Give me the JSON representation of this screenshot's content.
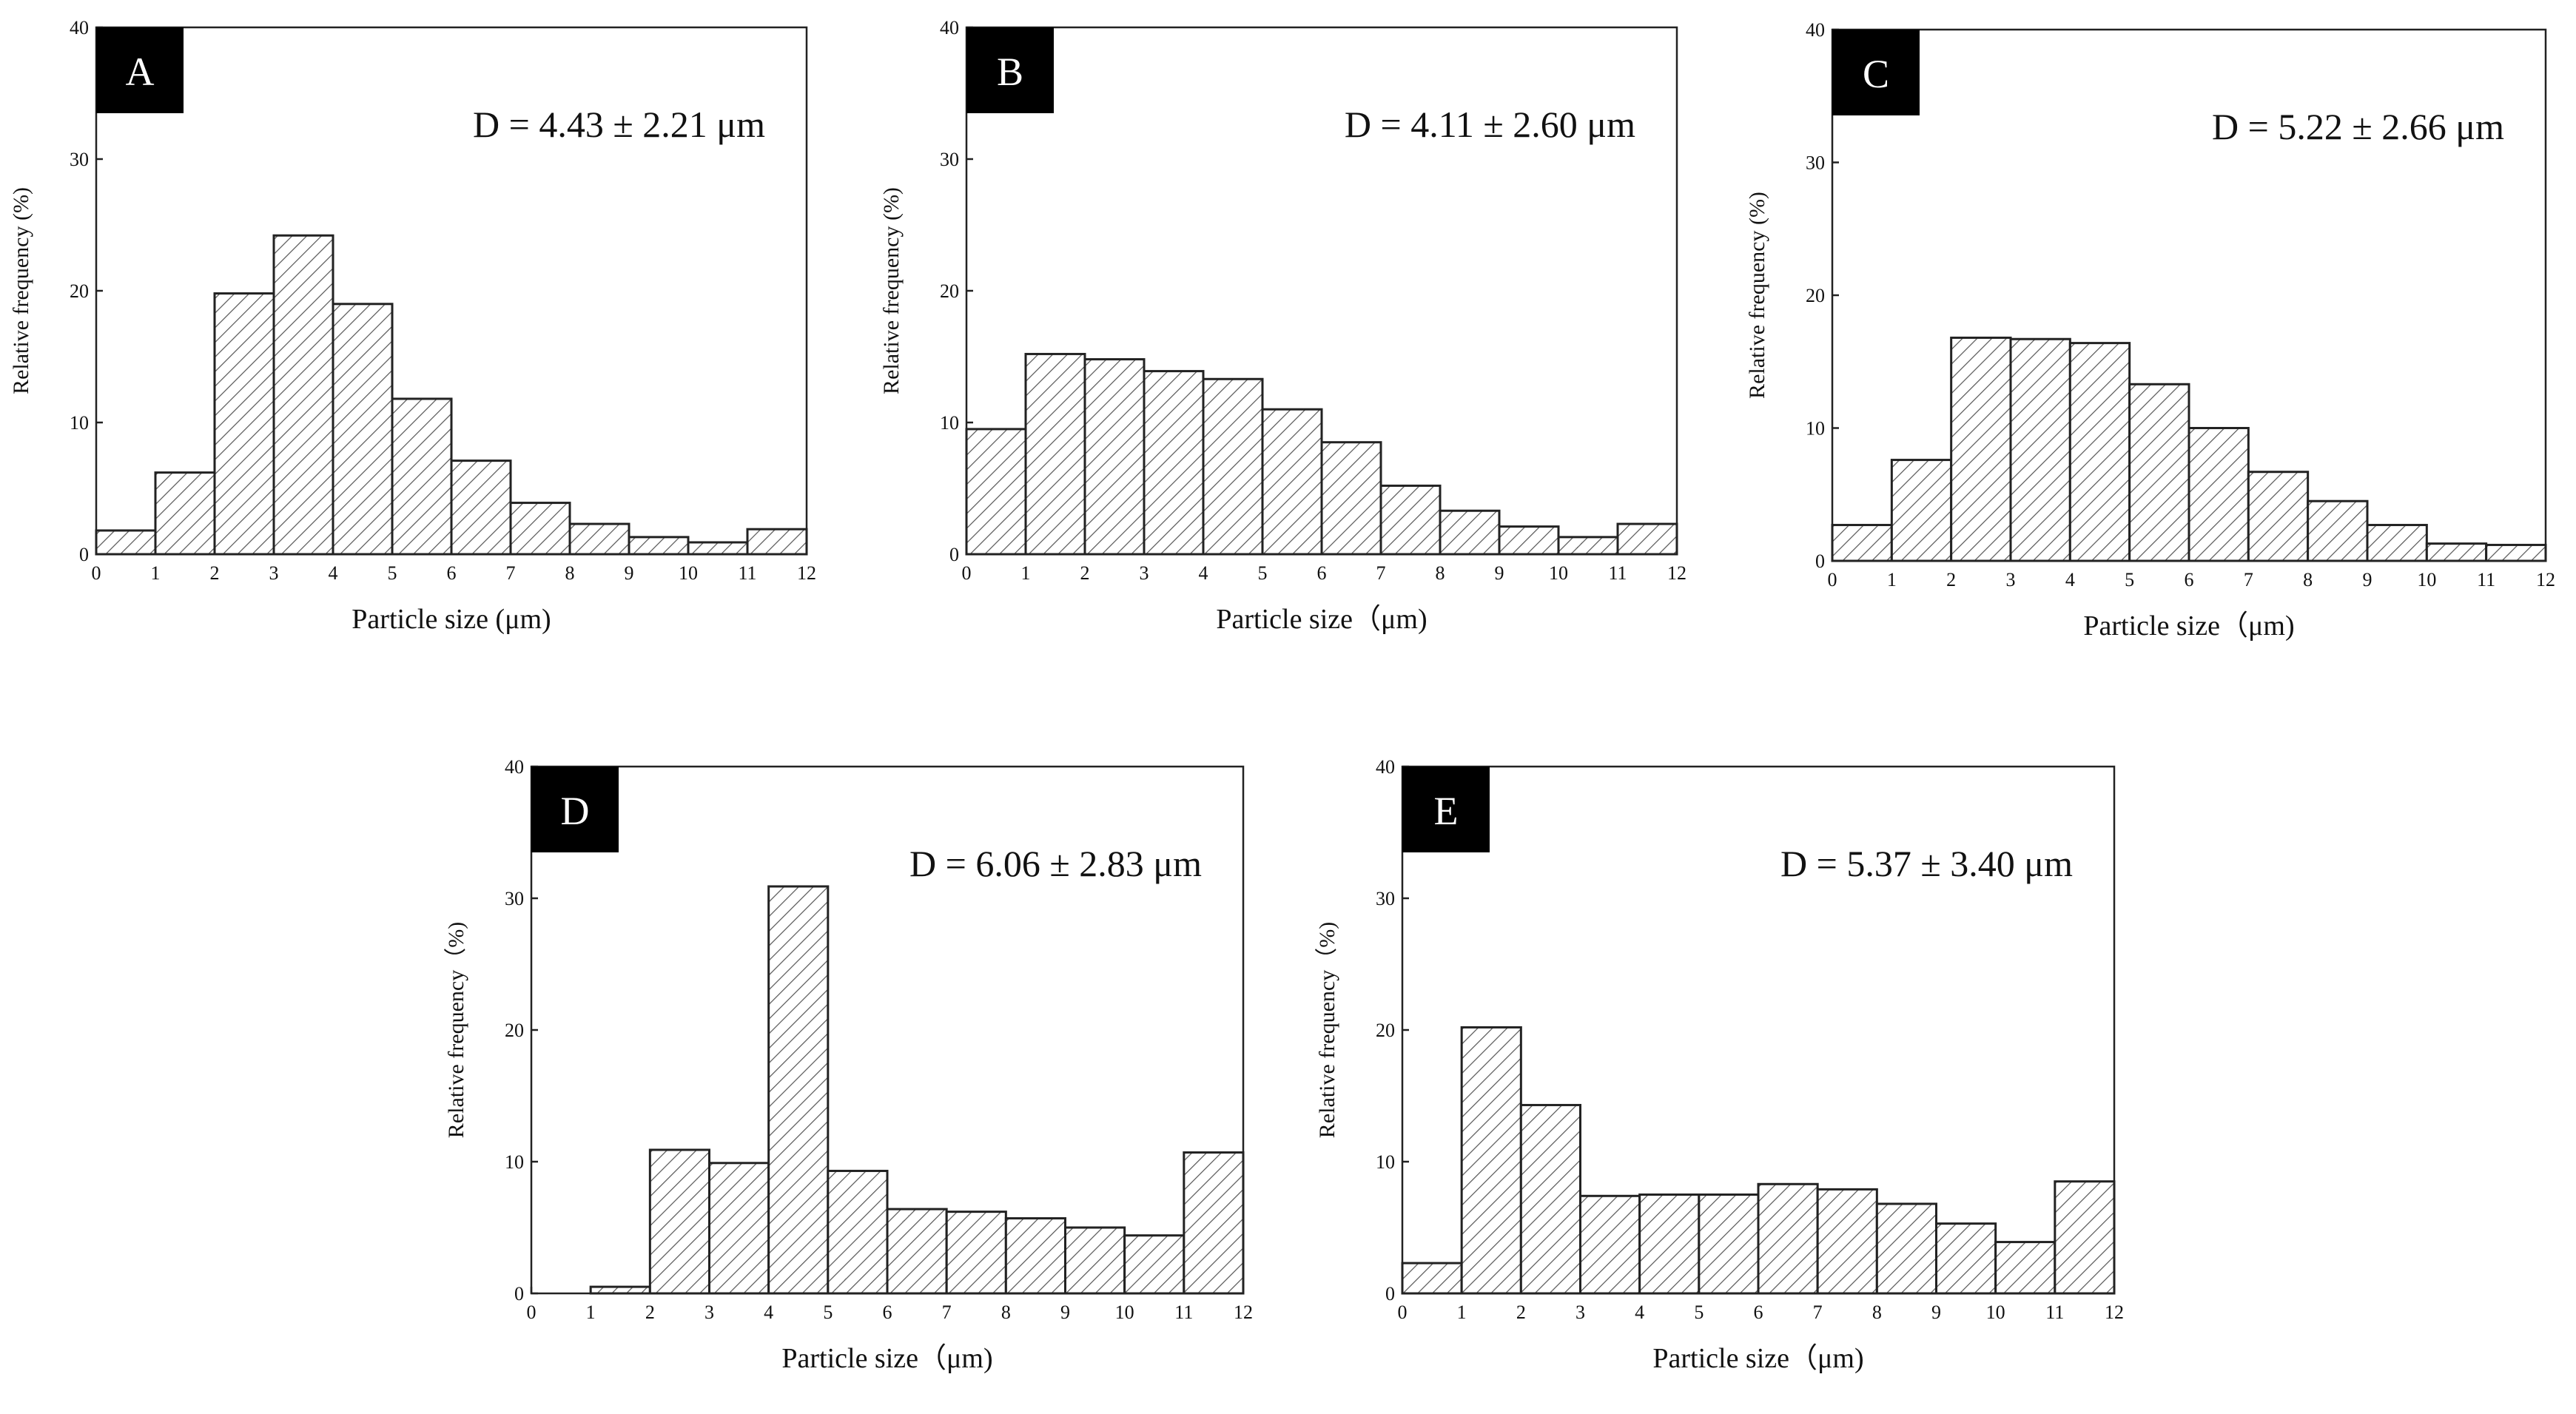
{
  "chart_data": [
    {
      "panel": "A",
      "type": "bar",
      "stat_label": "D = 4.43 ± 2.21 μm",
      "xlabel": "Particle size (μm)",
      "ylabel": "Relative frequency (%)",
      "xlim": [
        0,
        12
      ],
      "ylim": [
        0,
        40
      ],
      "x_ticks": [
        0,
        1,
        2,
        3,
        4,
        5,
        6,
        7,
        8,
        9,
        10,
        11,
        12
      ],
      "y_tick_labels": [
        "0",
        "10",
        "20",
        "30",
        "40"
      ],
      "bin_edges": [
        0,
        1,
        2,
        3,
        4,
        5,
        6,
        7,
        8,
        9,
        10,
        11,
        12
      ],
      "values": [
        1.8,
        6.2,
        19.8,
        24.2,
        19.0,
        11.8,
        7.1,
        3.9,
        2.3,
        1.3,
        0.9,
        1.9
      ]
    },
    {
      "panel": "B",
      "type": "bar",
      "stat_label": "D = 4.11 ± 2.60 μm",
      "xlabel": "Particle size（μm)",
      "ylabel": "Relative frequency (%)",
      "xlim": [
        0,
        12
      ],
      "ylim": [
        0,
        40
      ],
      "x_ticks": [
        0,
        1,
        2,
        3,
        4,
        5,
        6,
        7,
        8,
        9,
        10,
        11,
        12
      ],
      "y_tick_labels": [
        "0",
        "10",
        "20",
        "30",
        "40"
      ],
      "bin_edges": [
        0,
        1,
        2,
        3,
        4,
        5,
        6,
        7,
        8,
        9,
        10,
        11,
        12
      ],
      "values": [
        9.5,
        15.2,
        14.8,
        13.9,
        13.3,
        11.0,
        8.5,
        5.2,
        3.3,
        2.1,
        1.3,
        2.3
      ]
    },
    {
      "panel": "C",
      "type": "bar",
      "stat_label": "D = 5.22 ± 2.66 μm",
      "xlabel": "Particle size（μm)",
      "ylabel": "Relative frequency (%)",
      "xlim": [
        0,
        12
      ],
      "ylim": [
        0,
        40
      ],
      "x_ticks": [
        0,
        1,
        2,
        3,
        4,
        5,
        6,
        7,
        8,
        9,
        10,
        11,
        12
      ],
      "y_tick_labels": [
        "0",
        "10",
        "20",
        "30",
        "40"
      ],
      "bin_edges": [
        0,
        1,
        2,
        3,
        4,
        5,
        6,
        7,
        8,
        9,
        10,
        11,
        12
      ],
      "values": [
        2.7,
        7.6,
        16.8,
        16.7,
        16.4,
        13.3,
        10.0,
        6.7,
        4.5,
        2.7,
        1.3,
        1.2
      ]
    },
    {
      "panel": "D",
      "type": "bar",
      "stat_label": "D = 6.06 ± 2.83 μm",
      "xlabel": "Particle size（μm)",
      "ylabel": "Relative frequency（%)",
      "xlim": [
        0,
        12
      ],
      "ylim": [
        0,
        40
      ],
      "x_ticks": [
        0,
        1,
        2,
        3,
        4,
        5,
        6,
        7,
        8,
        9,
        10,
        11,
        12
      ],
      "y_tick_labels": [
        "0",
        "10",
        "20",
        "30",
        "40"
      ],
      "bin_edges": [
        0,
        1,
        2,
        3,
        4,
        5,
        6,
        7,
        8,
        9,
        10,
        11,
        12
      ],
      "values": [
        0.0,
        0.5,
        10.9,
        9.9,
        30.9,
        9.3,
        6.4,
        6.2,
        5.7,
        5.0,
        4.4,
        10.7
      ]
    },
    {
      "panel": "E",
      "type": "bar",
      "stat_label": "D = 5.37 ± 3.40 μm",
      "xlabel": "Particle size（μm)",
      "ylabel": "Relative frequency（%)",
      "xlim": [
        0,
        12
      ],
      "ylim": [
        0,
        40
      ],
      "x_ticks": [
        0,
        1,
        2,
        3,
        4,
        5,
        6,
        7,
        8,
        9,
        10,
        11,
        12
      ],
      "y_tick_labels": [
        "0",
        "10",
        "20",
        "30",
        "40"
      ],
      "bin_edges": [
        0,
        1,
        2,
        3,
        4,
        5,
        6,
        7,
        8,
        9,
        10,
        11,
        12
      ],
      "values": [
        2.3,
        20.2,
        14.3,
        7.4,
        7.5,
        7.5,
        8.3,
        7.9,
        6.8,
        5.3,
        3.9,
        8.5
      ]
    }
  ]
}
